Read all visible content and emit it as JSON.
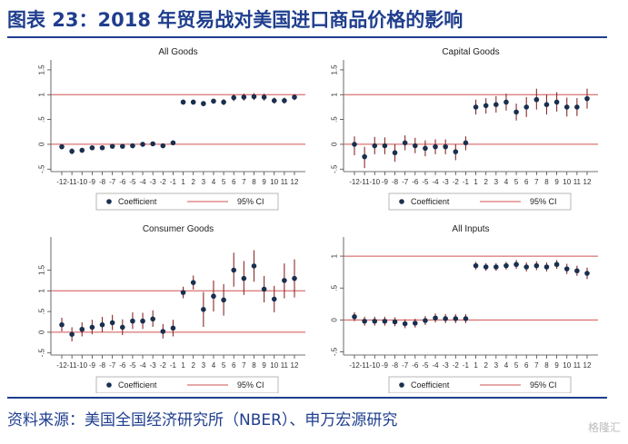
{
  "header": {
    "title": "图表 23：2018 年贸易战对美国进口商品价格的影响"
  },
  "footer": {
    "source": "资料来源：美国全国经济研究所（NBER）、申万宏源研究",
    "watermark": "格隆汇"
  },
  "legend": {
    "coefficient": "Coefficient",
    "ci": "95% CI"
  },
  "colors": {
    "point": "#1a2f4f",
    "errorbar": "#8a2a2a",
    "refline": "#d05050"
  },
  "chart_data": [
    {
      "type": "scatter",
      "title": "All Goods",
      "x_ticks": [
        "-12",
        "-11",
        "-10",
        "-9",
        "-8",
        "-7",
        "-6",
        "-5",
        "-4",
        "-3",
        "-2",
        "-1",
        "1",
        "2",
        "3",
        "4",
        "5",
        "6",
        "7",
        "8",
        "9",
        "10",
        "11",
        "12"
      ],
      "y_ticks": [
        "-.5",
        "0",
        ".5",
        "1",
        "1.5"
      ],
      "ylim": [
        -0.55,
        1.7
      ],
      "ref_lines": [
        0,
        1
      ],
      "coef": [
        -0.05,
        -0.14,
        -0.12,
        -0.07,
        -0.07,
        -0.04,
        -0.04,
        -0.03,
        0.0,
        0.01,
        -0.03,
        0.03,
        0.85,
        0.85,
        0.82,
        0.87,
        0.85,
        0.94,
        0.95,
        0.96,
        0.95,
        0.88,
        0.88,
        0.95
      ],
      "ci_low": [
        -0.1,
        -0.2,
        -0.17,
        -0.11,
        -0.11,
        -0.08,
        -0.08,
        -0.07,
        -0.04,
        -0.02,
        -0.06,
        0.0,
        0.8,
        0.8,
        0.77,
        0.82,
        0.79,
        0.87,
        0.88,
        0.89,
        0.88,
        0.82,
        0.82,
        0.89
      ],
      "ci_high": [
        0.0,
        -0.08,
        -0.07,
        -0.03,
        -0.03,
        0.0,
        0.0,
        0.01,
        0.04,
        0.04,
        0.0,
        0.06,
        0.9,
        0.9,
        0.87,
        0.92,
        0.91,
        1.01,
        1.02,
        1.03,
        1.02,
        0.94,
        0.94,
        1.01
      ]
    },
    {
      "type": "scatter",
      "title": "Capital Goods",
      "x_ticks": [
        "-12",
        "-11",
        "-10",
        "-9",
        "-8",
        "-7",
        "-6",
        "-5",
        "-4",
        "-3",
        "-2",
        "-1",
        "1",
        "2",
        "3",
        "4",
        "5",
        "6",
        "7",
        "8",
        "9",
        "10",
        "11",
        "12"
      ],
      "y_ticks": [
        "-.5",
        "0",
        ".5",
        "1",
        "1.5"
      ],
      "ylim": [
        -0.55,
        1.7
      ],
      "ref_lines": [
        0,
        1
      ],
      "coef": [
        0.0,
        -0.25,
        -0.03,
        -0.03,
        -0.17,
        0.03,
        -0.03,
        -0.08,
        -0.05,
        -0.05,
        -0.15,
        0.03,
        0.75,
        0.78,
        0.8,
        0.85,
        0.65,
        0.75,
        0.9,
        0.8,
        0.85,
        0.75,
        0.75,
        0.92
      ],
      "ci_low": [
        -0.22,
        -0.48,
        -0.2,
        -0.2,
        -0.35,
        -0.12,
        -0.18,
        -0.24,
        -0.2,
        -0.2,
        -0.32,
        -0.12,
        0.6,
        0.62,
        0.64,
        0.68,
        0.48,
        0.55,
        0.7,
        0.6,
        0.66,
        0.56,
        0.57,
        0.72
      ],
      "ci_high": [
        0.16,
        -0.05,
        0.15,
        0.14,
        0.0,
        0.18,
        0.13,
        0.08,
        0.1,
        0.1,
        0.0,
        0.16,
        0.9,
        0.93,
        0.97,
        1.02,
        0.82,
        0.95,
        1.12,
        1.0,
        1.05,
        0.94,
        0.93,
        1.12
      ]
    },
    {
      "type": "scatter",
      "title": "Consumer Goods",
      "x_ticks": [
        "-12",
        "-11",
        "-10",
        "-9",
        "-8",
        "-7",
        "-6",
        "-5",
        "-4",
        "-3",
        "-2",
        "-1",
        "1",
        "2",
        "3",
        "4",
        "5",
        "6",
        "7",
        "8",
        "9",
        "10",
        "11",
        "12"
      ],
      "y_ticks": [
        "-.5",
        "0",
        ".5",
        "1",
        "1.5"
      ],
      "ylim": [
        -0.55,
        2.3
      ],
      "ref_lines": [
        0,
        1
      ],
      "coef": [
        0.18,
        -0.05,
        0.07,
        0.12,
        0.18,
        0.23,
        0.12,
        0.27,
        0.27,
        0.32,
        0.02,
        0.1,
        0.96,
        1.2,
        0.55,
        0.87,
        0.78,
        1.5,
        1.3,
        1.6,
        1.04,
        0.8,
        1.25,
        1.3
      ],
      "ci_low": [
        0.02,
        -0.22,
        -0.1,
        -0.05,
        0.0,
        0.05,
        -0.07,
        0.08,
        0.08,
        0.13,
        -0.15,
        -0.1,
        0.82,
        1.03,
        0.13,
        0.5,
        0.4,
        1.1,
        0.9,
        1.22,
        0.72,
        0.48,
        0.82,
        0.84
      ],
      "ci_high": [
        0.35,
        0.12,
        0.24,
        0.3,
        0.37,
        0.42,
        0.31,
        0.48,
        0.47,
        0.53,
        0.2,
        0.3,
        1.1,
        1.37,
        0.97,
        1.25,
        1.16,
        1.92,
        1.72,
        1.98,
        1.36,
        1.12,
        1.66,
        1.76
      ]
    },
    {
      "type": "scatter",
      "title": "All Inputs",
      "x_ticks": [
        "-12",
        "-11",
        "-10",
        "-9",
        "-8",
        "-7",
        "-6",
        "-5",
        "-4",
        "-3",
        "-2",
        "-1",
        "1",
        "2",
        "3",
        "4",
        "5",
        "6",
        "7",
        "8",
        "9",
        "10",
        "11",
        "12"
      ],
      "y_ticks": [
        "-.5",
        "0",
        ".5",
        "1"
      ],
      "ylim": [
        -0.55,
        1.3
      ],
      "ref_lines": [
        0,
        1
      ],
      "coef": [
        0.05,
        -0.02,
        -0.02,
        -0.02,
        -0.03,
        -0.06,
        -0.05,
        -0.01,
        0.03,
        0.02,
        0.02,
        0.02,
        0.85,
        0.83,
        0.83,
        0.85,
        0.87,
        0.83,
        0.85,
        0.83,
        0.87,
        0.8,
        0.77,
        0.73
      ],
      "ci_low": [
        -0.02,
        -0.09,
        -0.09,
        -0.09,
        -0.1,
        -0.13,
        -0.12,
        -0.08,
        -0.04,
        -0.05,
        -0.05,
        -0.05,
        0.79,
        0.77,
        0.77,
        0.79,
        0.8,
        0.76,
        0.78,
        0.76,
        0.8,
        0.72,
        0.69,
        0.64
      ],
      "ci_high": [
        0.12,
        0.05,
        0.05,
        0.05,
        0.04,
        0.01,
        0.02,
        0.06,
        0.1,
        0.09,
        0.09,
        0.09,
        0.91,
        0.89,
        0.89,
        0.91,
        0.94,
        0.9,
        0.92,
        0.9,
        0.94,
        0.88,
        0.85,
        0.82
      ]
    }
  ]
}
